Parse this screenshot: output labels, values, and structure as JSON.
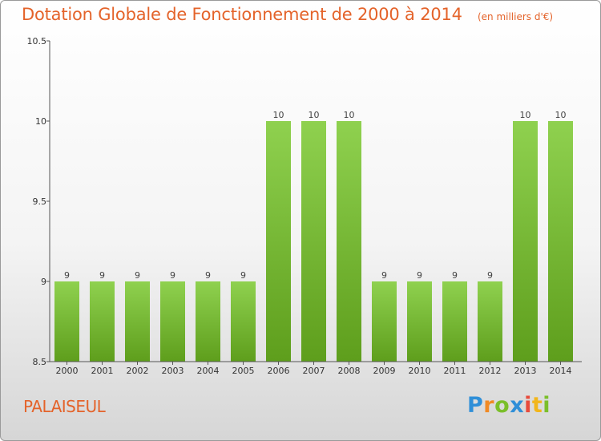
{
  "chart_data": {
    "type": "bar",
    "title": "Dotation Globale de Fonctionnement de 2000 à 2014",
    "subtitle": "(en milliers d'€)",
    "categories": [
      "2000",
      "2001",
      "2002",
      "2003",
      "2004",
      "2005",
      "2006",
      "2007",
      "2008",
      "2009",
      "2010",
      "2011",
      "2012",
      "2013",
      "2014"
    ],
    "values": [
      9,
      9,
      9,
      9,
      9,
      9,
      10,
      10,
      10,
      9,
      9,
      9,
      9,
      10,
      10
    ],
    "data_labels": [
      "9",
      "9",
      "9",
      "9",
      "9",
      "9",
      "10",
      "10",
      "10",
      "9",
      "9",
      "9",
      "9",
      "10",
      "10"
    ],
    "ylim": [
      8.5,
      10.5
    ],
    "yticks": [
      8.5,
      9,
      9.5,
      10,
      10.5
    ],
    "ytick_labels": [
      "8.5",
      "9",
      "9.5",
      "10",
      "10.5"
    ],
    "xlabel": "",
    "ylabel": "",
    "grid": false,
    "colors": {
      "bar_top": "#8fd14f",
      "bar_bottom": "#5e9e1c",
      "axis": "#555555"
    }
  },
  "footer": {
    "commune": "PALAISEUL",
    "logo_letters": [
      "P",
      "r",
      "o",
      "x",
      "i",
      "t",
      "i"
    ],
    "logo_colors": [
      "#2f8fd8",
      "#f08a24",
      "#7bbf2a",
      "#2f8fd8",
      "#e84b3c",
      "#f2b61b",
      "#7bbf2a"
    ]
  }
}
